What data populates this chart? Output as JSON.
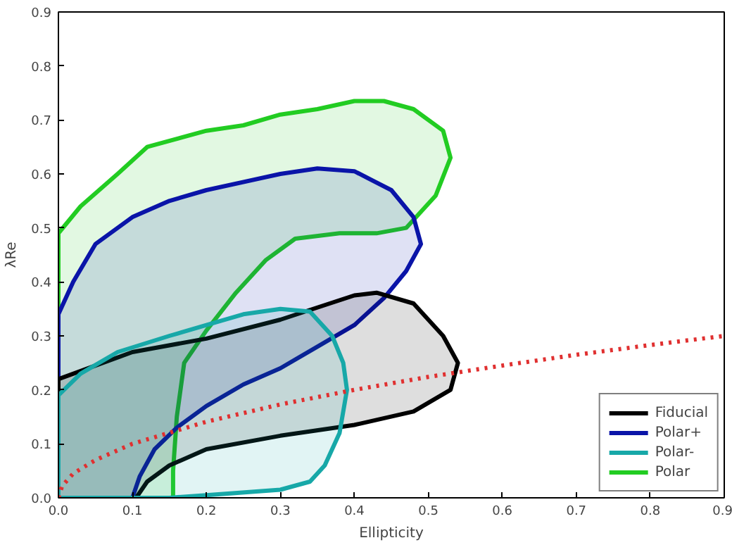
{
  "chart_data": {
    "type": "area",
    "xlabel": "Ellipticity",
    "ylabel": "λRe",
    "xlim": [
      0,
      0.9
    ],
    "ylim": [
      0,
      0.9
    ],
    "xticks": [
      {
        "value": 0,
        "label": "0.0"
      },
      {
        "value": 0.1,
        "label": "0.1"
      },
      {
        "value": 0.2,
        "label": "0.2"
      },
      {
        "value": 0.3,
        "label": "0.3"
      },
      {
        "value": 0.4,
        "label": "0.4"
      },
      {
        "value": 0.5,
        "label": "0.5"
      },
      {
        "value": 0.6,
        "label": "0.6"
      },
      {
        "value": 0.7,
        "label": "0.7"
      },
      {
        "value": 0.8,
        "label": "0.8"
      },
      {
        "value": 0.9,
        "label": "0.9"
      }
    ],
    "yticks": [
      {
        "value": 0,
        "label": "0.0"
      },
      {
        "value": 0.1,
        "label": "0.1"
      },
      {
        "value": 0.2,
        "label": "0.2"
      },
      {
        "value": 0.3,
        "label": "0.3"
      },
      {
        "value": 0.4,
        "label": "0.4"
      },
      {
        "value": 0.5,
        "label": "0.5"
      },
      {
        "value": 0.6,
        "label": "0.6"
      },
      {
        "value": 0.7,
        "label": "0.7"
      },
      {
        "value": 0.8,
        "label": "0.8"
      },
      {
        "value": 0.9,
        "label": "0.9"
      }
    ],
    "grid": false,
    "legend": "bottom right",
    "marker": "none",
    "series": [
      {
        "name": "Polar",
        "color": "#22cc22",
        "x": [
          0,
          0.03,
          0.08,
          0.12,
          0.2,
          0.25,
          0.3,
          0.35,
          0.4,
          0.44,
          0.48,
          0.52,
          0.53,
          0.51,
          0.47,
          0.43,
          0.38,
          0.32,
          0.28,
          0.24,
          0.2,
          0.17,
          0.16,
          0.155,
          0.155,
          0,
          0
        ],
        "values": [
          0.49,
          0.54,
          0.6,
          0.65,
          0.68,
          0.69,
          0.71,
          0.72,
          0.735,
          0.735,
          0.72,
          0.68,
          0.63,
          0.56,
          0.5,
          0.49,
          0.49,
          0.48,
          0.44,
          0.38,
          0.31,
          0.25,
          0.15,
          0.05,
          0,
          0,
          0.49
        ]
      },
      {
        "name": "Polar+",
        "color": "#0a14a8",
        "x": [
          0,
          0.02,
          0.05,
          0.1,
          0.15,
          0.2,
          0.3,
          0.35,
          0.4,
          0.45,
          0.48,
          0.49,
          0.47,
          0.44,
          0.4,
          0.35,
          0.3,
          0.25,
          0.2,
          0.16,
          0.13,
          0.11,
          0.1,
          0,
          0
        ],
        "values": [
          0.34,
          0.4,
          0.47,
          0.52,
          0.55,
          0.57,
          0.6,
          0.61,
          0.605,
          0.57,
          0.52,
          0.47,
          0.42,
          0.37,
          0.32,
          0.28,
          0.24,
          0.21,
          0.17,
          0.13,
          0.09,
          0.04,
          0,
          0,
          0.34
        ]
      },
      {
        "name": "Fiducial",
        "color": "#000000",
        "x": [
          0,
          0.1,
          0.2,
          0.3,
          0.4,
          0.43,
          0.48,
          0.52,
          0.54,
          0.53,
          0.48,
          0.4,
          0.3,
          0.2,
          0.15,
          0.12,
          0.105,
          0,
          0
        ],
        "values": [
          0.22,
          0.27,
          0.295,
          0.33,
          0.375,
          0.38,
          0.36,
          0.3,
          0.25,
          0.2,
          0.16,
          0.135,
          0.115,
          0.09,
          0.06,
          0.03,
          0,
          0,
          0.22
        ]
      },
      {
        "name": "Polar-",
        "color": "#17a8a8",
        "x": [
          0,
          0.03,
          0.08,
          0.15,
          0.2,
          0.25,
          0.3,
          0.34,
          0.37,
          0.385,
          0.39,
          0.38,
          0.36,
          0.34,
          0.3,
          0.2,
          0.15,
          0,
          0
        ],
        "values": [
          0.19,
          0.23,
          0.27,
          0.3,
          0.32,
          0.34,
          0.35,
          0.345,
          0.3,
          0.25,
          0.2,
          0.12,
          0.06,
          0.03,
          0.015,
          0.005,
          0,
          0,
          0.19
        ]
      },
      {
        "type": "line",
        "color": "#e03030",
        "line_style": "dotted",
        "x": [
          0,
          0.005,
          0.02,
          0.05,
          0.1,
          0.2,
          0.3,
          0.4,
          0.5,
          0.6,
          0.7,
          0.8,
          0.9
        ],
        "values": [
          0,
          0.022,
          0.045,
          0.07,
          0.1,
          0.141,
          0.173,
          0.2,
          0.224,
          0.245,
          0.265,
          0.283,
          0.3
        ]
      }
    ]
  }
}
